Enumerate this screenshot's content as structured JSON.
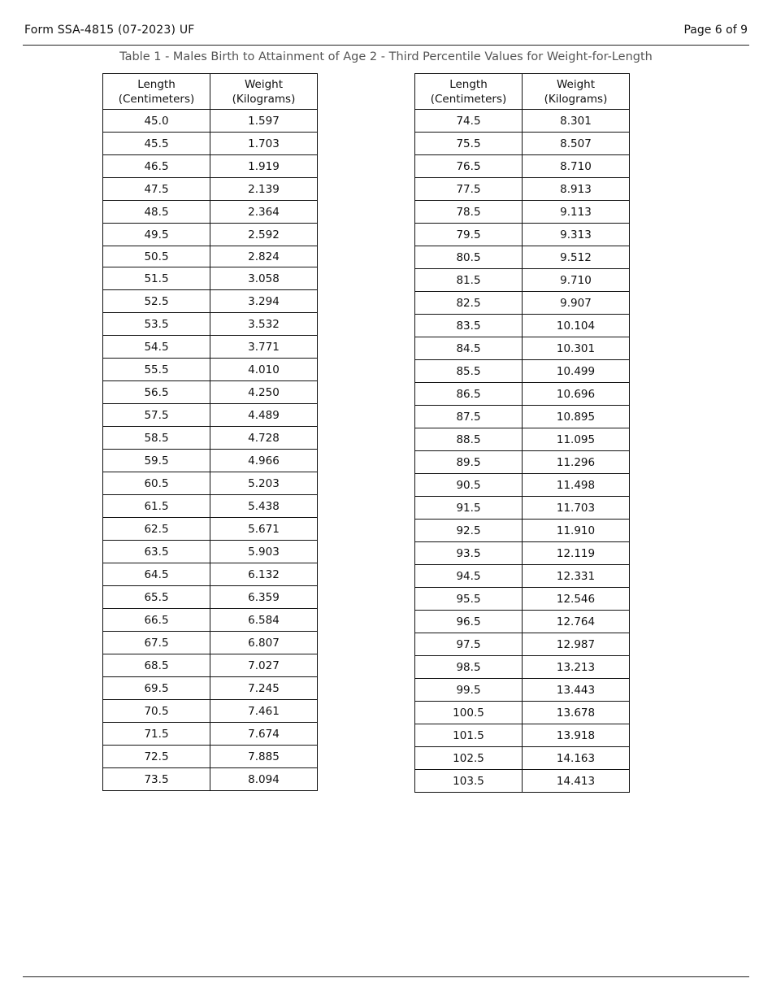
{
  "header": {
    "form_id": "Form SSA-4815 (07-2023) UF",
    "page": "Page 6 of 9"
  },
  "title": "Table 1 - Males Birth to Attainment of Age 2 - Third Percentile Values for Weight-for-Length",
  "columns": {
    "length_line1": "Length",
    "length_line2": "(Centimeters)",
    "weight_line1": "Weight",
    "weight_line2": "(Kilograms)"
  },
  "tables": [
    {
      "rows": [
        [
          "45.0",
          "1.597"
        ],
        [
          "45.5",
          "1.703"
        ],
        [
          "46.5",
          "1.919"
        ],
        [
          "47.5",
          "2.139"
        ],
        [
          "48.5",
          "2.364"
        ],
        [
          "49.5",
          "2.592"
        ],
        [
          "50.5",
          "2.824"
        ],
        [
          "51.5",
          "3.058"
        ],
        [
          "52.5",
          "3.294"
        ],
        [
          "53.5",
          "3.532"
        ],
        [
          "54.5",
          "3.771"
        ],
        [
          "55.5",
          "4.010"
        ],
        [
          "56.5",
          "4.250"
        ],
        [
          "57.5",
          "4.489"
        ],
        [
          "58.5",
          "4.728"
        ],
        [
          "59.5",
          "4.966"
        ],
        [
          "60.5",
          "5.203"
        ],
        [
          "61.5",
          "5.438"
        ],
        [
          "62.5",
          "5.671"
        ],
        [
          "63.5",
          "5.903"
        ],
        [
          "64.5",
          "6.132"
        ],
        [
          "65.5",
          "6.359"
        ],
        [
          "66.5",
          "6.584"
        ],
        [
          "67.5",
          "6.807"
        ],
        [
          "68.5",
          "7.027"
        ],
        [
          "69.5",
          "7.245"
        ],
        [
          "70.5",
          "7.461"
        ],
        [
          "71.5",
          "7.674"
        ],
        [
          "72.5",
          "7.885"
        ],
        [
          "73.5",
          "8.094"
        ]
      ]
    },
    {
      "rows": [
        [
          "74.5",
          "8.301"
        ],
        [
          "75.5",
          "8.507"
        ],
        [
          "76.5",
          "8.710"
        ],
        [
          "77.5",
          "8.913"
        ],
        [
          "78.5",
          "9.113"
        ],
        [
          "79.5",
          "9.313"
        ],
        [
          "80.5",
          "9.512"
        ],
        [
          "81.5",
          "9.710"
        ],
        [
          "82.5",
          "9.907"
        ],
        [
          "83.5",
          "10.104"
        ],
        [
          "84.5",
          "10.301"
        ],
        [
          "85.5",
          "10.499"
        ],
        [
          "86.5",
          "10.696"
        ],
        [
          "87.5",
          "10.895"
        ],
        [
          "88.5",
          "11.095"
        ],
        [
          "89.5",
          "11.296"
        ],
        [
          "90.5",
          "11.498"
        ],
        [
          "91.5",
          "11.703"
        ],
        [
          "92.5",
          "11.910"
        ],
        [
          "93.5",
          "12.119"
        ],
        [
          "94.5",
          "12.331"
        ],
        [
          "95.5",
          "12.546"
        ],
        [
          "96.5",
          "12.764"
        ],
        [
          "97.5",
          "12.987"
        ],
        [
          "98.5",
          "13.213"
        ],
        [
          "99.5",
          "13.443"
        ],
        [
          "100.5",
          "13.678"
        ],
        [
          "101.5",
          "13.918"
        ],
        [
          "102.5",
          "14.163"
        ],
        [
          "103.5",
          "14.413"
        ]
      ]
    }
  ]
}
